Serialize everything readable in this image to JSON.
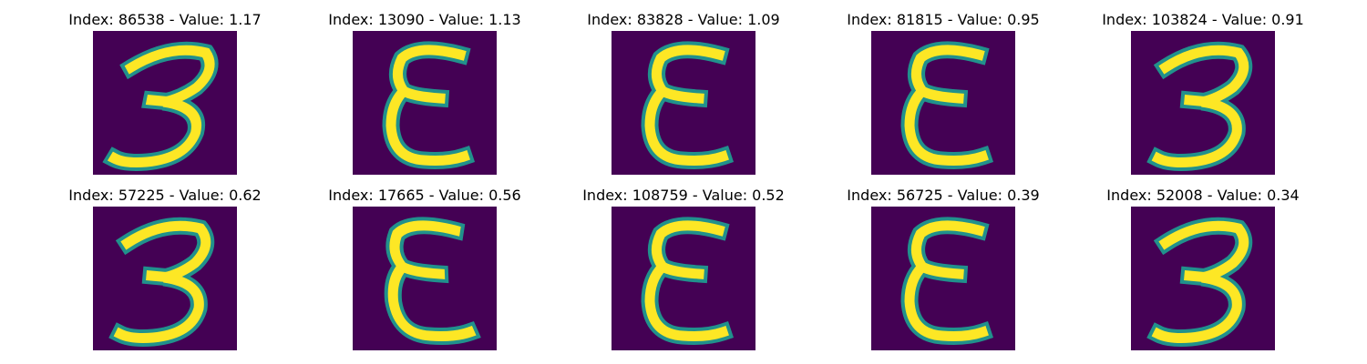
{
  "colormap": {
    "background": "#440154",
    "edge": "#21918c",
    "foreground": "#fde725"
  },
  "panels": [
    {
      "title": "Index: 86538 - Value: 1.17",
      "glyph": "three",
      "slant": -6
    },
    {
      "title": "Index: 13090 - Value: 1.13",
      "glyph": "epsilon",
      "slant": 0
    },
    {
      "title": "Index: 83828 - Value: 1.09",
      "glyph": "epsilon",
      "slant": 0
    },
    {
      "title": "Index: 81815 - Value: 0.95",
      "glyph": "epsilon",
      "slant": 0
    },
    {
      "title": "Index: 103824 - Value: 0.91",
      "glyph": "three",
      "slant": 0
    },
    {
      "title": "Index: 57225 - Value: 0.62",
      "glyph": "three",
      "slant": 0
    },
    {
      "title": "Index: 17665 - Value: 0.56",
      "glyph": "epsilon",
      "slant": 6
    },
    {
      "title": "Index: 108759 - Value: 0.52",
      "glyph": "epsilon",
      "slant": 0
    },
    {
      "title": "Index: 56725 - Value: 0.39",
      "glyph": "epsilon",
      "slant": 0
    },
    {
      "title": "Index: 52008 - Value: 0.34",
      "glyph": "three",
      "slant": 0
    }
  ]
}
